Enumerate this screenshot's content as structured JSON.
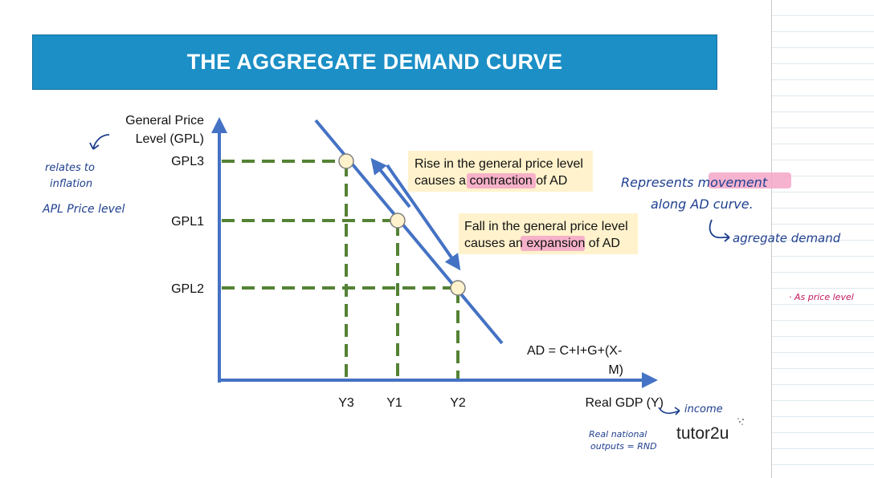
{
  "title": "THE AGGREGATE DEMAND CURVE",
  "axes": {
    "y_label_line1": "General Price",
    "y_label_line2": "Level (GPL)",
    "x_label": "Real GDP (Y)"
  },
  "price_levels": [
    "GPL3",
    "GPL1",
    "GPL2"
  ],
  "output_levels": [
    "Y3",
    "Y1",
    "Y2"
  ],
  "callouts": {
    "rise_line1": "Rise in the general price level",
    "rise_pre": "causes a ",
    "rise_highlight": "contraction",
    "rise_post": " of AD",
    "fall_line1": "Fall in the general price level",
    "fall_pre": "causes an ",
    "fall_highlight": "expansion",
    "fall_post": " of AD"
  },
  "formula": {
    "line1": "AD = C+I+G+(X-",
    "line2": "M)"
  },
  "annotations": {
    "relates_1": "relates to",
    "relates_2": "inflation",
    "apl": "APL Price level",
    "represents_pre": "Represents ",
    "represents_highlight": "movement",
    "along": "along AD curve.",
    "agg": "agregate demand",
    "income": "income",
    "rnd_1": "Real national",
    "rnd_2": "outputs = RND",
    "as_price": "· As price level"
  },
  "logo": "tutor2u",
  "colors": {
    "banner": "#1b8fc6",
    "axis": "#4472c4",
    "guide": "#548235",
    "point_fill": "#fff2cc",
    "callout_bg": "#fff2cc",
    "highlight": "#f4a6c8",
    "ink": "#1f3f8f"
  }
}
